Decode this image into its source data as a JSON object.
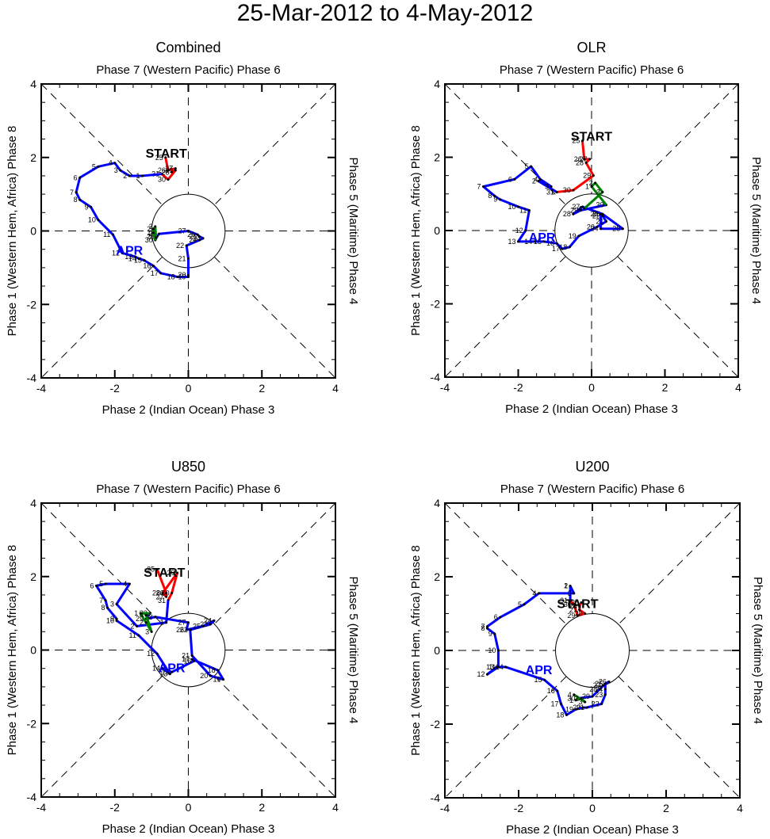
{
  "chart_data": {
    "type": "line",
    "title": "25-Mar-2012 to 4-May-2012",
    "grid": "dashed diagonals and zero lines",
    "unit_circle_radius": 1,
    "axis_range": {
      "xlim": [
        -4,
        4
      ],
      "ylim": [
        -4,
        4
      ]
    },
    "xticks": [
      "-4",
      "-2",
      "0",
      "2",
      "4"
    ],
    "yticks": [
      "-4",
      "-2",
      "0",
      "2",
      "4"
    ],
    "month_colors": {
      "MAR": "#ff0000",
      "APR": "#0000ff",
      "MAY": "#008000"
    },
    "panels": [
      {
        "title": "Combined",
        "top_label": "Phase 7 (Western Pacific) Phase 6",
        "bottom_label": "Phase 2 (Indian Ocean) Phase 3",
        "left_label": "Phase 1 (Western Hem, Africa) Phase 8",
        "right_label": "Phase 5 (Maritime) Phase 4",
        "start_label": "START",
        "start_pos": [
          -0.6,
          2.0
        ],
        "month_label": "APR",
        "month_label_pos": [
          -1.6,
          -0.65
        ],
        "mar": {
          "days": [
            "25",
            "26",
            "27",
            "28",
            "29",
            "30",
            "31"
          ],
          "x": [
            -0.62,
            -0.55,
            -0.35,
            -0.45,
            -0.35,
            -0.55,
            -0.72
          ],
          "y": [
            2.0,
            1.65,
            1.7,
            1.6,
            1.65,
            1.4,
            1.55
          ]
        },
        "apr": {
          "days": [
            "1",
            "2",
            "3",
            "4",
            "5",
            "6",
            "7",
            "8",
            "9",
            "10",
            "11",
            "12",
            "13",
            "14",
            "15",
            "16",
            "17",
            "18",
            "19",
            "20",
            "21",
            "22",
            "23",
            "24",
            "25",
            "26",
            "27",
            "28",
            "29",
            "30"
          ],
          "x": [
            -1.25,
            -1.6,
            -1.85,
            -2.0,
            -2.45,
            -2.95,
            -3.05,
            -2.95,
            -2.65,
            -2.45,
            -2.05,
            -1.8,
            -1.45,
            -1.35,
            -1.2,
            -0.95,
            -0.75,
            -0.3,
            0.0,
            0.0,
            0.0,
            -0.05,
            0.3,
            0.4,
            0.3,
            0.25,
            0.0,
            -0.8,
            -0.85,
            -0.9
          ],
          "y": [
            1.5,
            1.5,
            1.65,
            1.85,
            1.75,
            1.45,
            1.05,
            0.85,
            0.65,
            0.3,
            -0.1,
            -0.6,
            -0.7,
            -0.75,
            -0.8,
            -0.95,
            -1.15,
            -1.25,
            -1.25,
            -1.2,
            -0.75,
            -0.4,
            -0.25,
            -0.2,
            -0.15,
            -0.1,
            0.0,
            -0.08,
            -0.15,
            -0.25
          ]
        },
        "may": {
          "days": [
            "1",
            "2",
            "3",
            "4"
          ],
          "x": [
            -0.95,
            -0.95,
            -0.9,
            -0.88
          ],
          "y": [
            -0.05,
            0.05,
            0.12,
            -0.18
          ]
        }
      },
      {
        "title": "OLR",
        "top_label": "Phase 7 (Western Pacific) Phase 6",
        "bottom_label": "Phase 2 (Indian Ocean) Phase 3",
        "left_label": "Phase 1 (Western Hem, Africa) Phase 8",
        "right_label": "Phase 5 (Maritime) Phase 4",
        "start_label": "START",
        "start_pos": [
          0.0,
          2.45
        ],
        "month_label": "APR",
        "month_label_pos": [
          -1.35,
          -0.3
        ],
        "mar": {
          "days": [
            "25",
            "26",
            "27",
            "28",
            "29",
            "30",
            "31"
          ],
          "x": [
            -0.25,
            -0.2,
            -0.05,
            -0.15,
            0.05,
            -0.5,
            -0.95
          ],
          "y": [
            2.45,
            1.95,
            1.95,
            1.85,
            1.5,
            1.1,
            1.05
          ]
        },
        "apr": {
          "days": [
            "1",
            "2",
            "3",
            "4",
            "5",
            "6",
            "7",
            "8",
            "9",
            "10",
            "11",
            "12",
            "13",
            "14",
            "15",
            "16",
            "17",
            "18",
            "19",
            "20",
            "21",
            "22",
            "23",
            "24",
            "25",
            "26",
            "27",
            "28",
            "29",
            "30"
          ],
          "x": [
            -0.95,
            -1.45,
            -1.1,
            -1.4,
            -1.65,
            -2.1,
            -2.95,
            -2.65,
            -2.5,
            -2.0,
            -1.7,
            -1.8,
            -2.0,
            -1.55,
            -1.3,
            -0.95,
            -0.8,
            -0.6,
            -0.35,
            0.15,
            0.4,
            0.3,
            0.25,
            0.25,
            0.85,
            0.3,
            -0.25,
            -0.5,
            -0.3,
            0.4
          ],
          "y": [
            1.05,
            1.35,
            1.2,
            1.4,
            1.75,
            1.4,
            1.2,
            0.95,
            0.85,
            0.65,
            0.55,
            0.0,
            -0.3,
            -0.3,
            -0.3,
            -0.35,
            -0.5,
            -0.45,
            -0.15,
            0.1,
            0.25,
            0.4,
            0.45,
            0.05,
            0.05,
            0.45,
            0.65,
            0.45,
            0.55,
            0.7
          ]
        },
        "may": {
          "days": [
            "1",
            "2",
            "3",
            "4"
          ],
          "x": [
            0.0,
            0.1,
            0.3,
            -0.2
          ],
          "y": [
            1.2,
            1.3,
            1.05,
            0.6
          ]
        }
      },
      {
        "title": "U850",
        "top_label": "Phase 7 (Western Pacific) Phase 6",
        "bottom_label": "Phase 2 (Indian Ocean) Phase 3",
        "left_label": "Phase 1 (Western Hem, Africa) Phase 8",
        "right_label": "Phase 5 (Maritime) Phase 4",
        "start_label": "START",
        "start_pos": [
          -0.65,
          2.0
        ],
        "month_label": "APR",
        "month_label_pos": [
          -0.45,
          -0.6
        ],
        "mar": {
          "days": [
            "25",
            "26",
            "27",
            "28",
            "29",
            "30",
            "31"
          ],
          "x": [
            -0.85,
            -0.6,
            -0.6,
            -0.7,
            -0.3,
            -0.45,
            -0.55
          ],
          "y": [
            2.2,
            1.55,
            1.45,
            1.55,
            2.1,
            1.55,
            1.35
          ]
        },
        "apr": {
          "days": [
            "1",
            "2",
            "3",
            "4",
            "5",
            "6",
            "7",
            "8",
            "9",
            "10",
            "11",
            "12",
            "13",
            "14",
            "15",
            "16",
            "17",
            "18",
            "19",
            "20",
            "21",
            "22",
            "23",
            "24",
            "25",
            "26",
            "27",
            "28",
            "29",
            "30"
          ],
          "x": [
            -0.6,
            -1.4,
            -1.95,
            -1.6,
            -2.25,
            -2.5,
            -2.25,
            -2.2,
            -1.95,
            -1.95,
            -1.35,
            -0.85,
            -0.5,
            -0.7,
            -0.45,
            0.15,
            0.1,
            0.8,
            0.95,
            0.6,
            0.1,
            0.05,
            0.6,
            0.7,
            0.4,
            -0.05,
            0.0,
            -0.9,
            -1.15,
            -1.05
          ],
          "y": [
            0.75,
            0.65,
            1.25,
            1.8,
            1.8,
            1.75,
            1.35,
            1.15,
            0.85,
            0.8,
            0.4,
            -0.1,
            -0.65,
            -0.5,
            -0.6,
            -0.3,
            -0.25,
            -0.55,
            -0.8,
            -0.7,
            -0.15,
            0.55,
            0.7,
            0.8,
            0.65,
            0.55,
            0.75,
            0.9,
            0.85,
            1.0
          ]
        },
        "may": {
          "days": [
            "1",
            "2",
            "3",
            "4"
          ],
          "x": [
            -1.3,
            -1.15,
            -1.0,
            -1.15
          ],
          "y": [
            1.0,
            0.75,
            0.5,
            0.95
          ]
        }
      },
      {
        "title": "U200",
        "top_label": "Phase 7 (Western Pacific) Phase 6",
        "bottom_label": "Phase 2 (Indian Ocean) Phase 3",
        "left_label": "Phase 1 (Western Hem, Africa) Phase 8",
        "right_label": "Phase 5 (Maritime) Phase 4",
        "start_label": "START",
        "start_pos": [
          -0.4,
          1.15
        ],
        "month_label": "APR",
        "month_label_pos": [
          -1.45,
          -0.65
        ],
        "mar": {
          "days": [
            "25",
            "26",
            "27",
            "28",
            "29",
            "30",
            "31"
          ],
          "x": [
            -0.3,
            -0.35,
            -0.35,
            -0.2,
            -0.4,
            -0.5,
            -0.6
          ],
          "y": [
            1.3,
            1.2,
            1.1,
            1.0,
            0.95,
            1.25,
            1.35
          ]
        },
        "apr": {
          "days": [
            "1",
            "2",
            "3",
            "4",
            "5",
            "6",
            "7",
            "8",
            "9",
            "10",
            "11",
            "12",
            "13",
            "14",
            "15",
            "16",
            "17",
            "18",
            "19",
            "20",
            "21",
            "22",
            "23",
            "24",
            "25",
            "26",
            "27",
            "28",
            "29",
            "30"
          ],
          "x": [
            -0.6,
            -0.6,
            -0.5,
            -1.45,
            -1.85,
            -2.5,
            -2.85,
            -2.85,
            -2.65,
            -2.55,
            -2.55,
            -2.85,
            -2.6,
            -2.35,
            -1.3,
            -0.95,
            -0.85,
            -0.7,
            -0.45,
            -0.25,
            -0.15,
            0.25,
            0.35,
            0.35,
            0.35,
            0.45,
            0.3,
            0.2,
            0.0,
            -0.4
          ],
          "y": [
            1.75,
            1.75,
            1.55,
            1.55,
            1.25,
            0.9,
            0.65,
            0.6,
            0.45,
            0.0,
            -0.45,
            -0.65,
            -0.45,
            -0.45,
            -0.8,
            -1.1,
            -1.45,
            -1.75,
            -1.6,
            -1.55,
            -1.55,
            -1.45,
            -1.2,
            -1.05,
            -0.9,
            -0.85,
            -0.95,
            -1.05,
            -1.25,
            -1.3
          ]
        },
        "may": {
          "days": [
            "1",
            "2",
            "3",
            "4"
          ],
          "x": [
            -0.45,
            -0.3,
            -0.2,
            -0.5
          ],
          "y": [
            -1.35,
            -1.3,
            -1.4,
            -1.2
          ]
        }
      }
    ]
  }
}
